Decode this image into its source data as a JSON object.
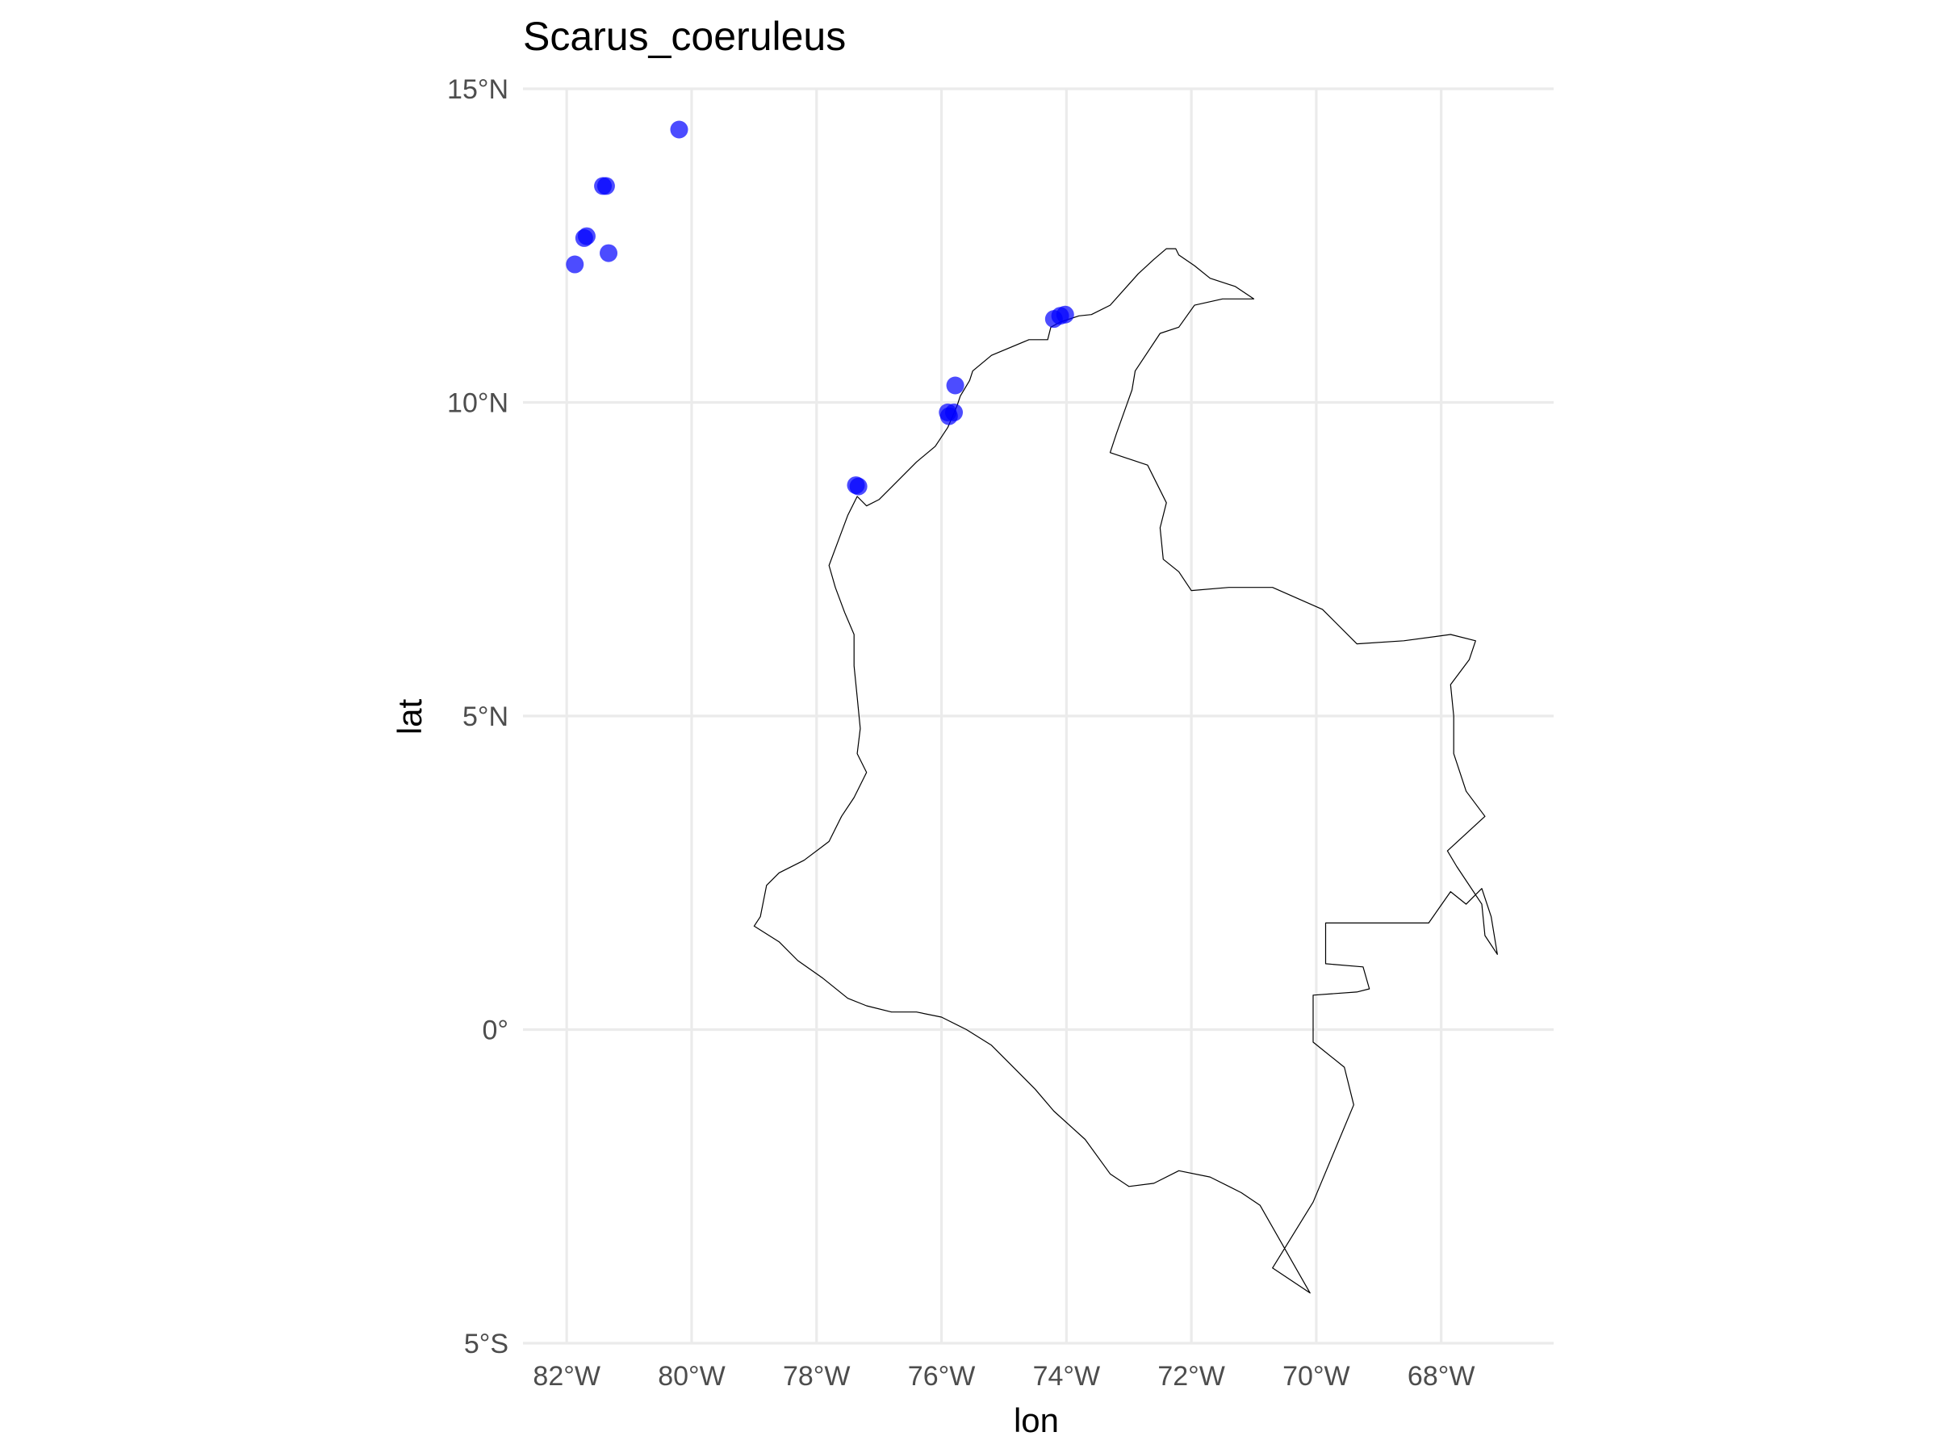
{
  "chart_data": {
    "type": "scatter",
    "title": "Scarus_coeruleus",
    "xlabel": "lon",
    "ylabel": "lat",
    "xlim": [
      -82.7,
      -66.2
    ],
    "ylim": [
      -5.0,
      15.0
    ],
    "x_ticks": [
      {
        "value": -82,
        "label": "82°W"
      },
      {
        "value": -80,
        "label": "80°W"
      },
      {
        "value": -78,
        "label": "78°W"
      },
      {
        "value": -76,
        "label": "76°W"
      },
      {
        "value": -74,
        "label": "74°W"
      },
      {
        "value": -72,
        "label": "72°W"
      },
      {
        "value": -70,
        "label": "70°W"
      },
      {
        "value": -68,
        "label": "68°W"
      }
    ],
    "y_ticks": [
      {
        "value": 15,
        "label": "15°N"
      },
      {
        "value": 10,
        "label": "10°N"
      },
      {
        "value": 5,
        "label": "5°N"
      },
      {
        "value": 0,
        "label": "0°"
      },
      {
        "value": -5,
        "label": "5°S"
      }
    ],
    "grid": true,
    "point_color": "#0000ff",
    "outline_color": "#000000",
    "points": [
      {
        "lon": -80.2,
        "lat": 14.35
      },
      {
        "lon": -81.42,
        "lat": 13.45
      },
      {
        "lon": -81.37,
        "lat": 13.45
      },
      {
        "lon": -81.72,
        "lat": 12.62
      },
      {
        "lon": -81.68,
        "lat": 12.65
      },
      {
        "lon": -81.33,
        "lat": 12.38
      },
      {
        "lon": -81.87,
        "lat": 12.2
      },
      {
        "lon": -74.2,
        "lat": 11.33
      },
      {
        "lon": -74.1,
        "lat": 11.38
      },
      {
        "lon": -74.02,
        "lat": 11.4
      },
      {
        "lon": -75.78,
        "lat": 10.27
      },
      {
        "lon": -75.9,
        "lat": 9.84
      },
      {
        "lon": -75.8,
        "lat": 9.84
      },
      {
        "lon": -75.88,
        "lat": 9.78
      },
      {
        "lon": -77.37,
        "lat": 8.68
      },
      {
        "lon": -77.33,
        "lat": 8.66
      }
    ],
    "outline_lonlat": [
      [
        -71.0,
        11.65
      ],
      [
        -71.3,
        11.85
      ],
      [
        -71.7,
        11.98
      ],
      [
        -71.95,
        12.18
      ],
      [
        -72.2,
        12.35
      ],
      [
        -72.25,
        12.45
      ],
      [
        -72.4,
        12.45
      ],
      [
        -72.6,
        12.28
      ],
      [
        -72.85,
        12.05
      ],
      [
        -73.3,
        11.55
      ],
      [
        -73.6,
        11.4
      ],
      [
        -73.8,
        11.38
      ],
      [
        -74.1,
        11.28
      ],
      [
        -74.25,
        11.2
      ],
      [
        -74.3,
        11.0
      ],
      [
        -74.6,
        11.0
      ],
      [
        -75.2,
        10.75
      ],
      [
        -75.5,
        10.5
      ],
      [
        -75.55,
        10.35
      ],
      [
        -75.7,
        10.1
      ],
      [
        -75.75,
        9.95
      ],
      [
        -75.9,
        9.6
      ],
      [
        -76.1,
        9.3
      ],
      [
        -76.4,
        9.05
      ],
      [
        -76.8,
        8.65
      ],
      [
        -77.0,
        8.45
      ],
      [
        -77.2,
        8.35
      ],
      [
        -77.35,
        8.5
      ],
      [
        -77.5,
        8.2
      ],
      [
        -77.65,
        7.8
      ],
      [
        -77.8,
        7.4
      ],
      [
        -77.7,
        7.05
      ],
      [
        -77.55,
        6.65
      ],
      [
        -77.4,
        6.3
      ],
      [
        -77.4,
        5.8
      ],
      [
        -77.35,
        5.3
      ],
      [
        -77.3,
        4.8
      ],
      [
        -77.35,
        4.4
      ],
      [
        -77.2,
        4.1
      ],
      [
        -77.4,
        3.7
      ],
      [
        -77.6,
        3.4
      ],
      [
        -77.8,
        3.0
      ],
      [
        -78.2,
        2.7
      ],
      [
        -78.6,
        2.5
      ],
      [
        -78.8,
        2.3
      ],
      [
        -78.9,
        1.8
      ],
      [
        -79.0,
        1.65
      ],
      [
        -78.6,
        1.4
      ],
      [
        -78.3,
        1.1
      ],
      [
        -77.9,
        0.82
      ],
      [
        -77.5,
        0.5
      ],
      [
        -77.2,
        0.38
      ],
      [
        -76.8,
        0.28
      ],
      [
        -76.4,
        0.28
      ],
      [
        -76.0,
        0.2
      ],
      [
        -75.6,
        0.0
      ],
      [
        -75.2,
        -0.25
      ],
      [
        -74.9,
        -0.55
      ],
      [
        -74.5,
        -0.95
      ],
      [
        -74.2,
        -1.3
      ],
      [
        -73.7,
        -1.75
      ],
      [
        -73.3,
        -2.3
      ],
      [
        -73.0,
        -2.5
      ],
      [
        -72.6,
        -2.45
      ],
      [
        -72.2,
        -2.25
      ],
      [
        -71.7,
        -2.35
      ],
      [
        -71.2,
        -2.6
      ],
      [
        -70.9,
        -2.8
      ],
      [
        -70.1,
        -4.2
      ],
      [
        -70.7,
        -3.8
      ],
      [
        -70.05,
        -2.75
      ],
      [
        -69.4,
        -1.2
      ],
      [
        -69.55,
        -0.6
      ],
      [
        -70.05,
        -0.2
      ],
      [
        -70.05,
        0.55
      ],
      [
        -69.35,
        0.6
      ],
      [
        -69.15,
        0.65
      ],
      [
        -69.25,
        1.0
      ],
      [
        -69.85,
        1.05
      ],
      [
        -69.85,
        1.7
      ],
      [
        -68.2,
        1.7
      ],
      [
        -67.85,
        2.2
      ],
      [
        -67.6,
        2.0
      ],
      [
        -67.35,
        2.25
      ],
      [
        -67.2,
        1.8
      ],
      [
        -67.1,
        1.2
      ],
      [
        -67.3,
        1.5
      ],
      [
        -67.35,
        2.0
      ],
      [
        -67.75,
        2.6
      ],
      [
        -67.9,
        2.85
      ],
      [
        -67.3,
        3.4
      ],
      [
        -67.6,
        3.8
      ],
      [
        -67.8,
        4.4
      ],
      [
        -67.8,
        5.0
      ],
      [
        -67.85,
        5.5
      ],
      [
        -67.55,
        5.9
      ],
      [
        -67.45,
        6.2
      ],
      [
        -67.85,
        6.3
      ],
      [
        -68.6,
        6.2
      ],
      [
        -69.35,
        6.15
      ],
      [
        -69.9,
        6.7
      ],
      [
        -70.7,
        7.05
      ],
      [
        -71.4,
        7.05
      ],
      [
        -72.0,
        7.0
      ],
      [
        -72.2,
        7.3
      ],
      [
        -72.45,
        7.5
      ],
      [
        -72.5,
        8.0
      ],
      [
        -72.4,
        8.4
      ],
      [
        -72.7,
        9.0
      ],
      [
        -73.3,
        9.2
      ],
      [
        -73.2,
        9.5
      ],
      [
        -72.95,
        10.2
      ],
      [
        -72.9,
        10.5
      ],
      [
        -72.5,
        11.1
      ],
      [
        -72.2,
        11.2
      ],
      [
        -71.95,
        11.55
      ],
      [
        -71.5,
        11.65
      ],
      [
        -71.0,
        11.65
      ]
    ]
  }
}
